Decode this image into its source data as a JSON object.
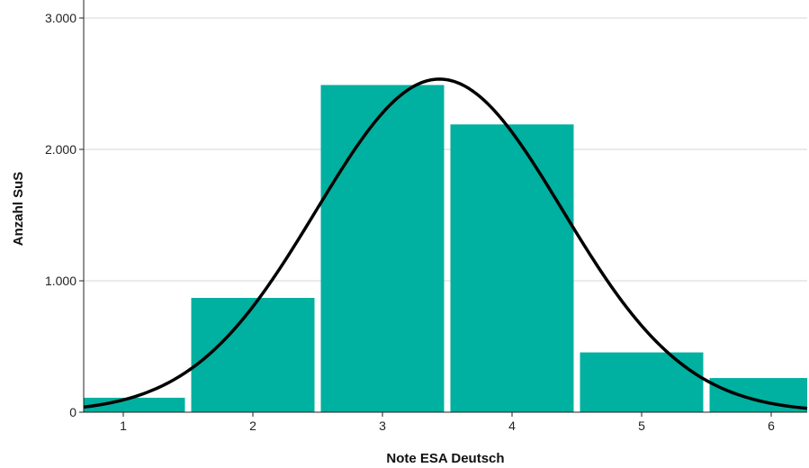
{
  "colors": {
    "bar": "#00b0a0",
    "curve": "#000000",
    "grid": "#d4d4d4",
    "axis": "#222222",
    "background": "#ffffff"
  },
  "chart_data": {
    "type": "bar",
    "overlay": "normal-curve",
    "title": "",
    "xlabel": "Note ESA Deutsch",
    "ylabel": "Anzahl SuS",
    "categories": [
      "1",
      "2",
      "3",
      "4",
      "5",
      "6"
    ],
    "values": [
      110,
      870,
      2490,
      2190,
      455,
      260
    ],
    "ylim": [
      0,
      3000
    ],
    "yticks": [
      {
        "value": 0,
        "label": "0"
      },
      {
        "value": 1000,
        "label": "1.000"
      },
      {
        "value": 2000,
        "label": "2.000"
      },
      {
        "value": 3000,
        "label": "3.000"
      }
    ],
    "curve": {
      "mean": 3.44,
      "sd": 0.95,
      "peak": 2535
    },
    "grid": "horizontal",
    "legend": "none"
  }
}
